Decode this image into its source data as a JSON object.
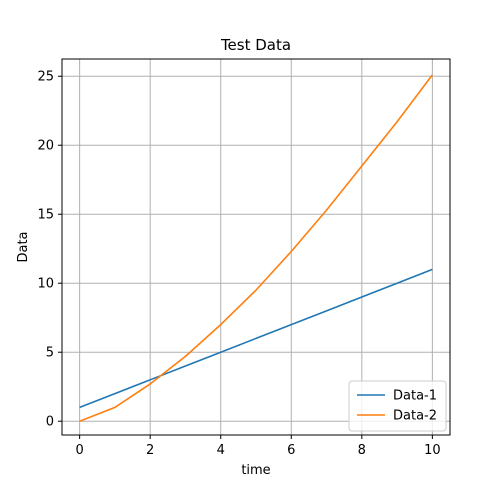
{
  "chart_data": {
    "type": "line",
    "title": "Test Data",
    "xlabel": "time",
    "ylabel": "Data",
    "xlim": [
      -0.5,
      10.5
    ],
    "ylim": [
      -1.0,
      26.25
    ],
    "xticks": [
      0,
      2,
      4,
      6,
      8,
      10
    ],
    "yticks": [
      0,
      5,
      10,
      15,
      20,
      25
    ],
    "xtick_labels": [
      "0",
      "2",
      "4",
      "6",
      "8",
      "10"
    ],
    "ytick_labels": [
      "0",
      "5",
      "10",
      "15",
      "20",
      "25"
    ],
    "grid": true,
    "legend_position": "lower-right",
    "x": [
      0,
      1,
      2,
      3,
      4,
      5,
      6,
      7,
      8,
      9,
      10
    ],
    "series": [
      {
        "name": "Data-1",
        "color": "#1f77b4",
        "values": [
          1,
          2,
          3,
          4,
          5,
          6,
          7,
          8,
          9,
          10,
          11
        ]
      },
      {
        "name": "Data-2",
        "color": "#ff7f0e",
        "values": [
          0,
          1,
          2.7,
          4.7,
          7.0,
          9.5,
          12.3,
          15.3,
          18.5,
          21.7,
          25.1
        ]
      }
    ]
  }
}
